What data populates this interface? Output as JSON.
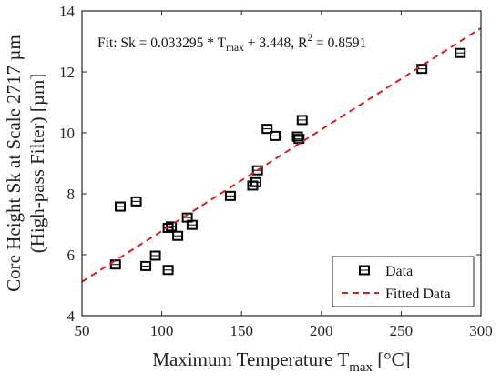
{
  "chart_data": {
    "type": "scatter",
    "xlabel_main": "Maximum Temperature T",
    "xlabel_sub": "max",
    "xlabel_unit": " [°C]",
    "ylabel_line1": "Core Height Sk at Scale 2717 µm",
    "ylabel_line2": "(High-pass Filter) [µm]",
    "xlim": [
      50,
      300
    ],
    "ylim": [
      4,
      14
    ],
    "xticks": [
      50,
      100,
      150,
      200,
      250,
      300
    ],
    "yticks": [
      4,
      6,
      8,
      10,
      12,
      14
    ],
    "grid": false,
    "annotation": {
      "pre": "Fit: Sk = 0.033295 * T",
      "sub": "max",
      "mid": " + 3.448, R",
      "sup": "2",
      "post": " = 0.8591"
    },
    "fit": {
      "slope": 0.033295,
      "intercept": 3.448,
      "x_start": 50,
      "x_end": 300
    },
    "legend": {
      "placement": "bottom-right",
      "items": [
        "Data",
        "Fitted Data"
      ]
    },
    "colors": {
      "data": "#000000",
      "fit": "#e01b1b"
    },
    "series": [
      {
        "name": "Data",
        "points": [
          [
            71,
            5.68
          ],
          [
            74,
            7.58
          ],
          [
            84,
            7.75
          ],
          [
            90,
            5.63
          ],
          [
            96,
            5.97
          ],
          [
            104,
            5.5
          ],
          [
            104,
            6.88
          ],
          [
            106,
            6.93
          ],
          [
            110,
            6.62
          ],
          [
            116,
            7.22
          ],
          [
            119,
            6.98
          ],
          [
            143,
            7.93
          ],
          [
            157,
            8.27
          ],
          [
            159,
            8.38
          ],
          [
            160,
            8.77
          ],
          [
            166,
            10.13
          ],
          [
            171,
            9.9
          ],
          [
            185,
            9.88
          ],
          [
            186,
            9.8
          ],
          [
            188,
            10.42
          ],
          [
            263,
            12.1
          ],
          [
            287,
            12.62
          ]
        ]
      }
    ]
  }
}
